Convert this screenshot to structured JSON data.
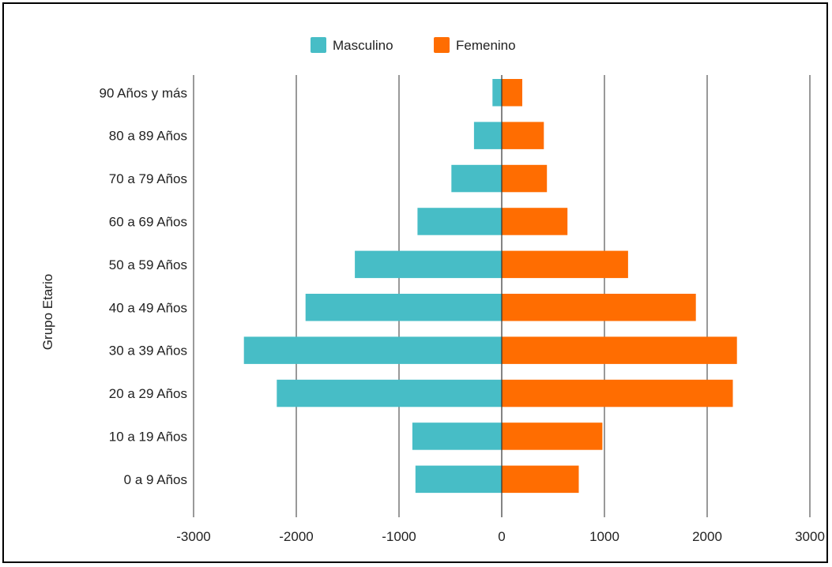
{
  "chart_data": {
    "type": "bar",
    "orientation": "horizontal",
    "stacked": true,
    "title": "",
    "ylabel": "Grupo Etario",
    "xlabel": "",
    "categories": [
      "0 a 9 Años",
      "10 a 19 Años",
      "20 a 29 Años",
      "30 a 39 Años",
      "40 a 49 Años",
      "50 a 59 Años",
      "60 a 69 Años",
      "70 a 79 Años",
      "80 a 89 Años",
      "90 Años y más"
    ],
    "series": [
      {
        "name": "Masculino",
        "color": "#47bdc6",
        "values": [
          -840,
          -870,
          -2190,
          -2510,
          -1910,
          -1430,
          -820,
          -490,
          -270,
          -90
        ]
      },
      {
        "name": "Femenino",
        "color": "#ff6d01",
        "values": [
          750,
          980,
          2250,
          2290,
          1890,
          1230,
          640,
          440,
          410,
          200
        ]
      }
    ],
    "xlim": [
      -3000,
      3000
    ],
    "xticks": [
      "-3000",
      "-2000",
      "-1000",
      "0",
      "1000",
      "2000",
      "3000"
    ],
    "grid": true,
    "legend_position": "top"
  }
}
